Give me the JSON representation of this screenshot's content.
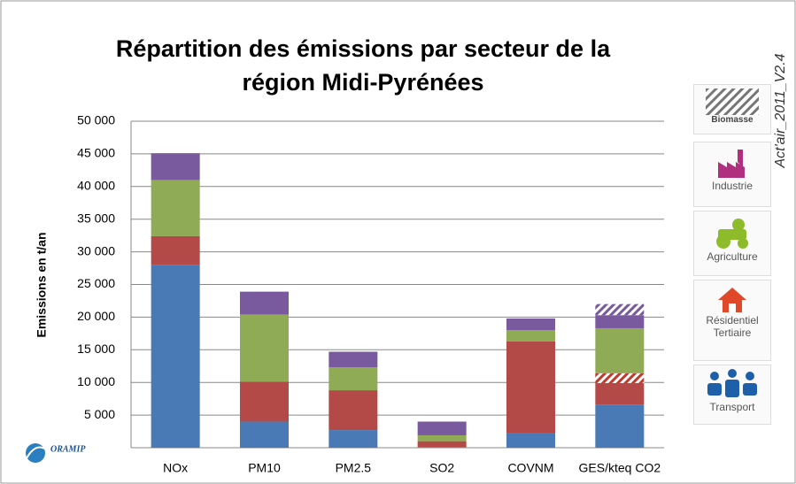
{
  "chart_data": {
    "type": "stacked_bar",
    "title": [
      "Répartition des émissions par secteur de la",
      "région Midi-Pyrénées"
    ],
    "y_label": "Emissions en t/an",
    "annotation": "Act'air_2011_V2.4",
    "logo": "ORAMIP",
    "categories": [
      "NOx",
      "PM10",
      "PM2.5",
      "SO2",
      "COVNM",
      "GES/kteq CO2"
    ],
    "ylim": [
      0,
      50000
    ],
    "yticks": [
      {
        "value": 5000,
        "label": "5 000"
      },
      {
        "value": 10000,
        "label": "10 000"
      },
      {
        "value": 15000,
        "label": "15 000"
      },
      {
        "value": 20000,
        "label": "20 000"
      },
      {
        "value": 25000,
        "label": "25 000"
      },
      {
        "value": 30000,
        "label": "30 000"
      },
      {
        "value": 35000,
        "label": "35 000"
      },
      {
        "value": 40000,
        "label": "40 000"
      },
      {
        "value": 45000,
        "label": "45 000"
      },
      {
        "value": 50000,
        "label": "50 000"
      }
    ],
    "grid": true,
    "series": [
      {
        "name": "Transport",
        "color": "#4a7ab5",
        "values": [
          28000,
          4000,
          2700,
          100,
          2300,
          6600
        ]
      },
      {
        "name": "Résidentiel Tertiaire",
        "color": "#b34a47",
        "values": [
          4400,
          6100,
          6100,
          900,
          14000,
          3300
        ]
      },
      {
        "name": "Biomasse",
        "color": "#c0392b",
        "hatch": true,
        "values": [
          0,
          0,
          0,
          0,
          0,
          1500
        ]
      },
      {
        "name": "Agriculture",
        "color": "#8fab55",
        "values": [
          8600,
          10300,
          3500,
          900,
          1700,
          6900
        ]
      },
      {
        "name": "Industrie",
        "color": "#7a5a9e",
        "values": [
          4100,
          3500,
          2400,
          2100,
          1800,
          2000
        ]
      },
      {
        "name": "Biomasse",
        "color": "#7a5a9e",
        "hatch": true,
        "values": [
          0,
          0,
          0,
          0,
          0,
          1700
        ]
      }
    ]
  }
}
